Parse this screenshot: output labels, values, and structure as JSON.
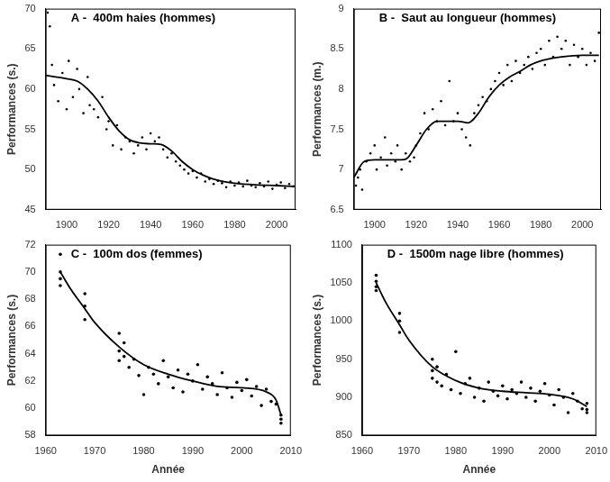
{
  "chart_data": [
    {
      "type": "scatter",
      "title": "A -  400m haies (hommes)",
      "y_label": "Performances (s.)",
      "xlim": [
        1890,
        2009
      ],
      "xticks": [
        1900,
        1920,
        1940,
        1960,
        1980,
        2000
      ],
      "ylim": [
        45,
        70
      ],
      "yticks": [
        45,
        50,
        55,
        60,
        65,
        70
      ],
      "grid": false,
      "series": [
        {
          "type": "scatter",
          "color": "#000000",
          "marker": "circle",
          "line_style": "none",
          "x": [
            1891,
            1892,
            1893,
            1894,
            1896,
            1898,
            1900,
            1901,
            1903,
            1905,
            1906,
            1908,
            1910,
            1911,
            1913,
            1915,
            1917,
            1919,
            1920,
            1922,
            1924,
            1926,
            1928,
            1930,
            1932,
            1934,
            1936,
            1938,
            1940,
            1942,
            1944,
            1946,
            1948,
            1950,
            1952,
            1954,
            1956,
            1958,
            1960,
            1962,
            1964,
            1966,
            1968,
            1970,
            1972,
            1974,
            1976,
            1978,
            1980,
            1982,
            1984,
            1986,
            1988,
            1990,
            1992,
            1994,
            1996,
            1998,
            2000,
            2002,
            2004,
            2006,
            2008
          ],
          "values": [
            69.5,
            67.8,
            63,
            60.5,
            58.5,
            62,
            57.5,
            63.5,
            59,
            62.5,
            60,
            57,
            61.5,
            58,
            57.5,
            56.5,
            59,
            55,
            56,
            53,
            55.5,
            52.5,
            54,
            53.5,
            52,
            53,
            54,
            52.5,
            54.5,
            53.5,
            54,
            52.5,
            51.5,
            52,
            51,
            50.5,
            50,
            49.5,
            49.8,
            49,
            49.5,
            48.5,
            48.8,
            48.2,
            48.6,
            48.3,
            47.8,
            48.5,
            48,
            48.4,
            47.9,
            48.6,
            48,
            47.8,
            48.3,
            47.9,
            48.5,
            47.6,
            48.1,
            48.4,
            47.7,
            48.2,
            47.9
          ]
        },
        {
          "type": "line",
          "color": "#000000",
          "marker": "none",
          "line_style": "solid",
          "x": [
            1890,
            1900,
            1905,
            1910,
            1915,
            1920,
            1925,
            1930,
            1935,
            1940,
            1945,
            1950,
            1955,
            1960,
            1965,
            1970,
            1975,
            1980,
            1990,
            2000,
            2008
          ],
          "values": [
            61.7,
            61.3,
            61,
            60,
            58.5,
            56.5,
            54.8,
            53.7,
            53.3,
            53.2,
            53.1,
            52.3,
            51,
            50,
            49.3,
            48.8,
            48.5,
            48.3,
            48.1,
            48,
            47.9
          ]
        }
      ]
    },
    {
      "type": "scatter",
      "title": "B -  Saut au longueur (hommes)",
      "y_label": "Performances (m.)",
      "xlim": [
        1890,
        2009
      ],
      "xticks": [
        1900,
        1920,
        1940,
        1960,
        1980,
        2000
      ],
      "ylim": [
        6.5,
        9
      ],
      "yticks": [
        6.5,
        7,
        7.5,
        8,
        8.5,
        9
      ],
      "grid": false,
      "series": [
        {
          "type": "scatter",
          "color": "#000000",
          "marker": "circle",
          "line_style": "none",
          "x": [
            1891,
            1892,
            1893,
            1894,
            1896,
            1898,
            1900,
            1901,
            1903,
            1905,
            1906,
            1908,
            1910,
            1911,
            1913,
            1915,
            1917,
            1919,
            1920,
            1922,
            1924,
            1926,
            1928,
            1930,
            1932,
            1934,
            1936,
            1938,
            1940,
            1942,
            1944,
            1946,
            1948,
            1950,
            1952,
            1954,
            1956,
            1958,
            1960,
            1962,
            1964,
            1966,
            1968,
            1970,
            1972,
            1974,
            1976,
            1978,
            1980,
            1982,
            1984,
            1986,
            1988,
            1990,
            1992,
            1994,
            1996,
            1998,
            2000,
            2002,
            2004,
            2006,
            2008
          ],
          "values": [
            6.8,
            6.9,
            7.0,
            6.75,
            7.1,
            7.2,
            7.3,
            7.0,
            7.15,
            7.4,
            7.05,
            7.2,
            7.1,
            7.3,
            7.0,
            7.2,
            7.1,
            7.15,
            7.3,
            7.45,
            7.7,
            7.5,
            7.75,
            7.6,
            7.85,
            7.55,
            8.1,
            7.6,
            7.7,
            7.5,
            7.4,
            7.3,
            7.7,
            7.8,
            7.9,
            7.85,
            8.0,
            8.1,
            8.2,
            8.05,
            8.3,
            8.1,
            8.35,
            8.2,
            8.3,
            8.4,
            8.25,
            8.45,
            8.5,
            8.3,
            8.6,
            8.4,
            8.65,
            8.5,
            8.6,
            8.3,
            8.55,
            8.4,
            8.5,
            8.3,
            8.45,
            8.35,
            8.7
          ]
        },
        {
          "type": "line",
          "color": "#000000",
          "marker": "none",
          "line_style": "solid",
          "x": [
            1890,
            1895,
            1900,
            1910,
            1915,
            1920,
            1925,
            1930,
            1935,
            1940,
            1945,
            1950,
            1955,
            1960,
            1965,
            1970,
            1975,
            1980,
            1985,
            1990,
            2000,
            2008
          ],
          "values": [
            6.9,
            7.1,
            7.12,
            7.12,
            7.13,
            7.3,
            7.5,
            7.6,
            7.6,
            7.6,
            7.58,
            7.7,
            7.9,
            8.05,
            8.15,
            8.22,
            8.3,
            8.35,
            8.38,
            8.4,
            8.42,
            8.42
          ]
        }
      ]
    },
    {
      "type": "scatter",
      "title": "C -  100m dos (femmes)",
      "y_label": "Performances (s.)",
      "x_label": "Année",
      "xlim": [
        1960,
        2010
      ],
      "xticks": [
        1960,
        1970,
        1980,
        1990,
        2000,
        2010
      ],
      "ylim": [
        58,
        72
      ],
      "yticks": [
        58,
        60,
        62,
        64,
        66,
        68,
        70,
        72
      ],
      "grid": false,
      "series": [
        {
          "type": "scatter",
          "color": "#000000",
          "marker": "circle",
          "line_style": "none",
          "x": [
            1963,
            1963,
            1963,
            1963,
            1968,
            1968,
            1968,
            1975,
            1975,
            1975,
            1976,
            1976,
            1977,
            1978,
            1979,
            1980,
            1981,
            1982,
            1983,
            1984,
            1985,
            1986,
            1987,
            1988,
            1989,
            1990,
            1991,
            1992,
            1993,
            1994,
            1995,
            1996,
            1997,
            1998,
            1999,
            2000,
            2001,
            2002,
            2003,
            2004,
            2005,
            2006,
            2007,
            2008,
            2008,
            2008
          ],
          "values": [
            71.3,
            70,
            69.5,
            69,
            68.4,
            67.5,
            66.5,
            65.5,
            64.2,
            63.5,
            64.8,
            63.8,
            63,
            63.6,
            62.4,
            61,
            63,
            62.5,
            61.8,
            63.5,
            62.3,
            61.5,
            62.8,
            61.2,
            62.5,
            62,
            63.2,
            61.4,
            62.3,
            61.8,
            61,
            62.6,
            61.5,
            60.8,
            61.9,
            61.3,
            62.1,
            60.9,
            61.6,
            60.2,
            61.4,
            60.5,
            60.3,
            59.5,
            58.9,
            59.2
          ]
        },
        {
          "type": "line",
          "color": "#000000",
          "marker": "none",
          "line_style": "solid",
          "x": [
            1963,
            1965,
            1968,
            1970,
            1975,
            1980,
            1985,
            1990,
            1995,
            2000,
            2005,
            2007,
            2008
          ],
          "values": [
            70,
            68.8,
            67.3,
            66.3,
            64.5,
            63.2,
            62.5,
            62,
            61.6,
            61.5,
            61.2,
            60.6,
            59.5
          ]
        }
      ]
    },
    {
      "type": "scatter",
      "title": "D -  1500m nage libre (hommes)",
      "y_label": "Performances (s.)",
      "x_label": "Année",
      "xlim": [
        1960,
        2010
      ],
      "xticks": [
        1960,
        1970,
        1980,
        1990,
        2000,
        2010
      ],
      "ylim": [
        850,
        1100
      ],
      "yticks": [
        850,
        900,
        950,
        1000,
        1050,
        1100
      ],
      "grid": false,
      "series": [
        {
          "type": "scatter",
          "color": "#000000",
          "marker": "circle",
          "line_style": "none",
          "x": [
            1963,
            1963,
            1963,
            1963,
            1968,
            1968,
            1968,
            1975,
            1975,
            1975,
            1976,
            1976,
            1977,
            1978,
            1979,
            1980,
            1981,
            1982,
            1983,
            1984,
            1985,
            1986,
            1987,
            1988,
            1989,
            1990,
            1991,
            1992,
            1993,
            1994,
            1995,
            1996,
            1997,
            1998,
            1999,
            2000,
            2001,
            2002,
            2003,
            2004,
            2005,
            2006,
            2007,
            2008,
            2008,
            2008
          ],
          "values": [
            1060,
            1052,
            1045,
            1040,
            1010,
            1000,
            985,
            950,
            935,
            925,
            940,
            920,
            915,
            930,
            910,
            960,
            905,
            918,
            925,
            900,
            912,
            895,
            920,
            908,
            902,
            915,
            898,
            910,
            905,
            920,
            900,
            912,
            895,
            908,
            918,
            903,
            890,
            910,
            900,
            880,
            905,
            895,
            885,
            892,
            884,
            880
          ]
        },
        {
          "type": "line",
          "color": "#000000",
          "marker": "none",
          "line_style": "solid",
          "x": [
            1963,
            1965,
            1968,
            1970,
            1975,
            1980,
            1985,
            1990,
            1995,
            2000,
            2005,
            2008
          ],
          "values": [
            1050,
            1025,
            995,
            975,
            940,
            922,
            912,
            908,
            906,
            904,
            898,
            888
          ]
        }
      ]
    }
  ]
}
